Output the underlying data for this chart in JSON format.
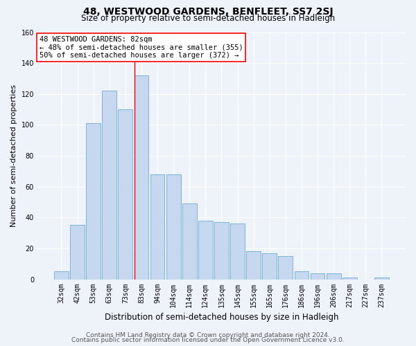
{
  "title": "48, WESTWOOD GARDENS, BENFLEET, SS7 2SJ",
  "subtitle": "Size of property relative to semi-detached houses in Hadleigh",
  "xlabel": "Distribution of semi-detached houses by size in Hadleigh",
  "ylabel": "Number of semi-detached properties",
  "categories": [
    "32sqm",
    "42sqm",
    "53sqm",
    "63sqm",
    "73sqm",
    "83sqm",
    "94sqm",
    "104sqm",
    "114sqm",
    "124sqm",
    "135sqm",
    "145sqm",
    "155sqm",
    "165sqm",
    "176sqm",
    "186sqm",
    "196sqm",
    "206sqm",
    "217sqm",
    "227sqm",
    "237sqm"
  ],
  "values": [
    5,
    35,
    101,
    122,
    110,
    132,
    68,
    68,
    49,
    38,
    37,
    36,
    18,
    17,
    15,
    5,
    4,
    4,
    1,
    0,
    1
  ],
  "bar_color": "#c5d8ef",
  "bar_edge_color": "#6aaad4",
  "red_line_index": 5,
  "annotation_line1": "48 WESTWOOD GARDENS: 82sqm",
  "annotation_line2": "← 48% of semi-detached houses are smaller (355)",
  "annotation_line3": "50% of semi-detached houses are larger (372) →",
  "ylim": [
    0,
    160
  ],
  "yticks": [
    0,
    20,
    40,
    60,
    80,
    100,
    120,
    140,
    160
  ],
  "footer_line1": "Contains HM Land Registry data © Crown copyright and database right 2024.",
  "footer_line2": "Contains public sector information licensed under the Open Government Licence v3.0.",
  "bg_color": "#eef2f9",
  "grid_color": "#ffffff",
  "title_fontsize": 10,
  "subtitle_fontsize": 8.5,
  "ylabel_fontsize": 8,
  "xlabel_fontsize": 8.5,
  "tick_fontsize": 7,
  "annotation_fontsize": 7.5,
  "footer_fontsize": 6.5
}
